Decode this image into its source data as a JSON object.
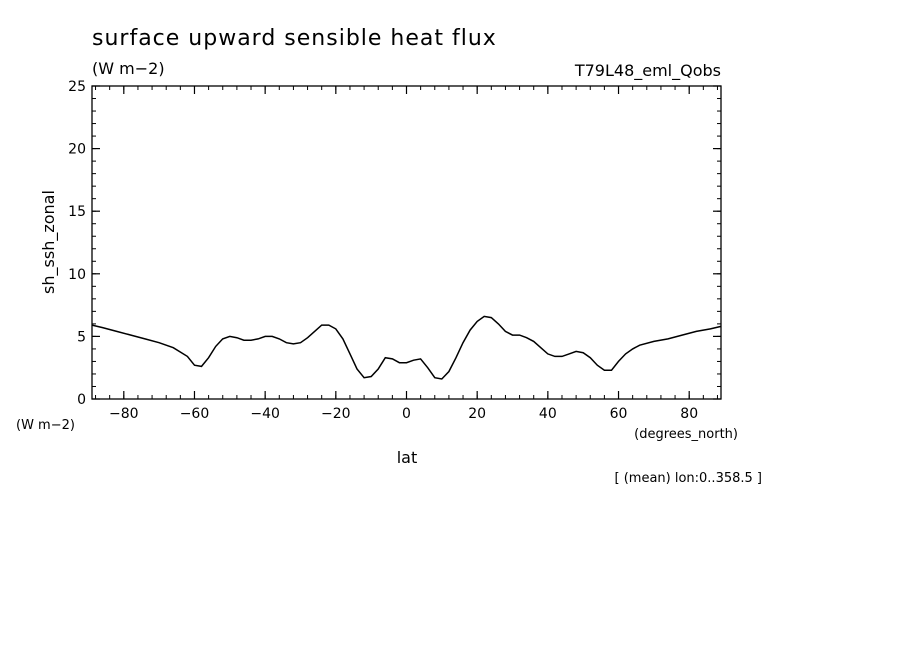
{
  "chart_data": {
    "type": "line",
    "title": "surface upward sensible heat flux",
    "units": "(W m−2)",
    "run": "T79L48_eml_Qobs",
    "ylabel": "sh_ssh_zonal",
    "yunit": "(W m−2)",
    "xlabel": "lat",
    "xunit": "(degrees_north)",
    "note": "[ (mean) lon:0..358.5 ]",
    "xlim": [
      -89,
      89
    ],
    "ylim": [
      0,
      25
    ],
    "xticks": [
      -80,
      -60,
      -40,
      -20,
      0,
      20,
      40,
      60,
      80
    ],
    "yticks": [
      0,
      5,
      10,
      15,
      20,
      25
    ],
    "grid": false,
    "line_color": "#000000",
    "series": [
      {
        "x": [
          -89,
          -86,
          -82,
          -78,
          -74,
          -70,
          -66,
          -62,
          -60,
          -58,
          -56,
          -54,
          -52,
          -50,
          -48,
          -46,
          -44,
          -42,
          -40,
          -38,
          -36,
          -34,
          -32,
          -30,
          -28,
          -26,
          -24,
          -22,
          -20,
          -18,
          -16,
          -14,
          -12,
          -10,
          -8,
          -6,
          -4,
          -2,
          0,
          2,
          4,
          6,
          8,
          10,
          12,
          14,
          16,
          18,
          20,
          22,
          24,
          26,
          28,
          30,
          32,
          34,
          36,
          38,
          40,
          42,
          44,
          46,
          48,
          50,
          52,
          54,
          56,
          58,
          60,
          62,
          64,
          66,
          70,
          74,
          78,
          82,
          86,
          89
        ],
        "y": [
          5.9,
          5.7,
          5.4,
          5.1,
          4.8,
          4.5,
          4.1,
          3.4,
          2.7,
          2.6,
          3.3,
          4.2,
          4.8,
          5.0,
          4.9,
          4.7,
          4.7,
          4.8,
          5.0,
          5.0,
          4.8,
          4.5,
          4.4,
          4.5,
          4.9,
          5.4,
          5.9,
          5.9,
          5.6,
          4.8,
          3.6,
          2.4,
          1.7,
          1.8,
          2.4,
          3.3,
          3.2,
          2.9,
          2.9,
          3.1,
          3.2,
          2.5,
          1.7,
          1.6,
          2.2,
          3.3,
          4.5,
          5.5,
          6.2,
          6.6,
          6.5,
          6.0,
          5.4,
          5.1,
          5.1,
          4.9,
          4.6,
          4.1,
          3.6,
          3.4,
          3.4,
          3.6,
          3.8,
          3.7,
          3.3,
          2.7,
          2.3,
          2.3,
          3.0,
          3.6,
          4.0,
          4.3,
          4.6,
          4.8,
          5.1,
          5.4,
          5.6,
          5.8
        ]
      }
    ]
  }
}
